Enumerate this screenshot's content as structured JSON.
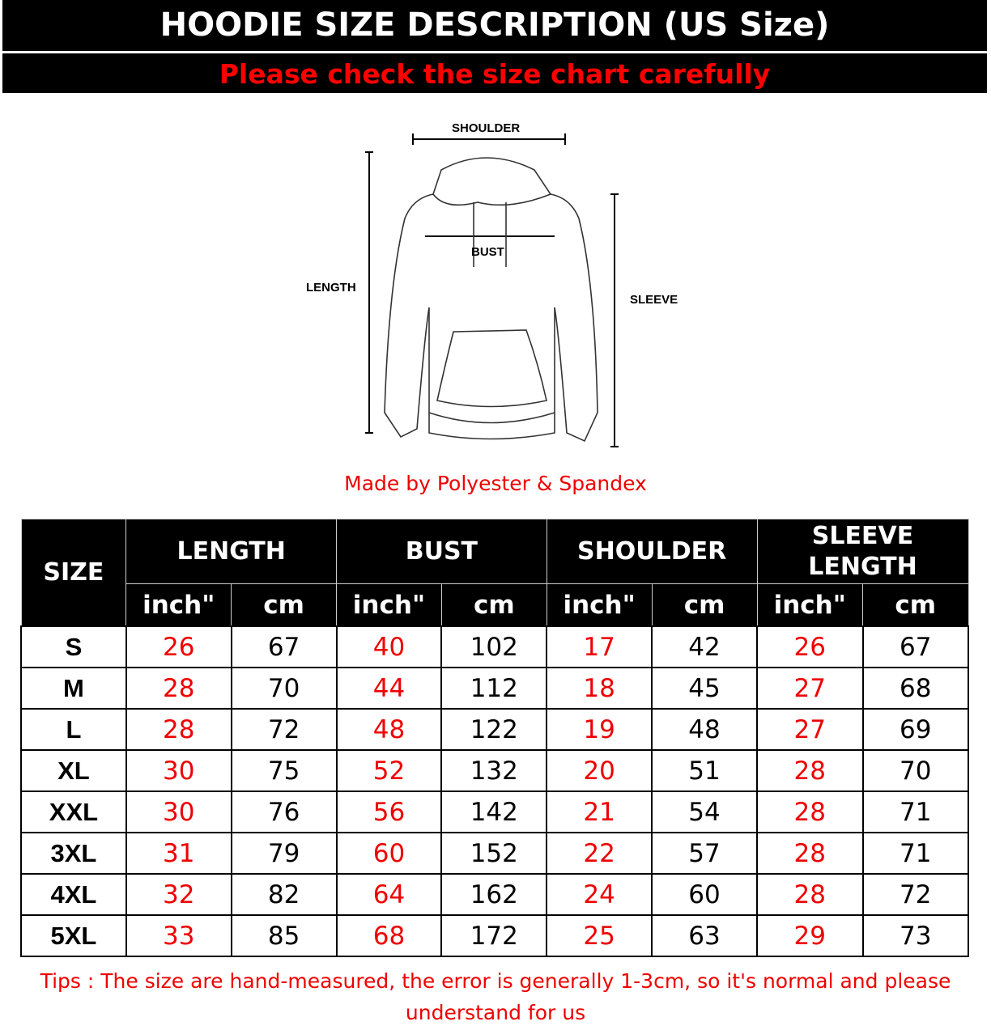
{
  "title": "HOODIE SIZE DESCRIPTION (US Size)",
  "subtitle": "Please check the size chart carefully",
  "diagram": {
    "shoulder": "SHOULDER",
    "bust": "BUST",
    "length": "LENGTH",
    "sleeve": "SLEEVE"
  },
  "material": "Made by Polyester & Spandex",
  "table": {
    "size_header": "SIZE",
    "groups": [
      "LENGTH",
      "BUST",
      "SHOULDER",
      "SLEEVE LENGTH"
    ],
    "units": [
      "inch\"",
      "cm"
    ],
    "rows": [
      [
        "S",
        "26",
        "67",
        "40",
        "102",
        "17",
        "42",
        "26",
        "67"
      ],
      [
        "M",
        "28",
        "70",
        "44",
        "112",
        "18",
        "45",
        "27",
        "68"
      ],
      [
        "L",
        "28",
        "72",
        "48",
        "122",
        "19",
        "48",
        "27",
        "69"
      ],
      [
        "XL",
        "30",
        "75",
        "52",
        "132",
        "20",
        "51",
        "28",
        "70"
      ],
      [
        "XXL",
        "30",
        "76",
        "56",
        "142",
        "21",
        "54",
        "28",
        "71"
      ],
      [
        "3XL",
        "31",
        "79",
        "60",
        "152",
        "22",
        "57",
        "28",
        "71"
      ],
      [
        "4XL",
        "32",
        "82",
        "64",
        "162",
        "24",
        "60",
        "28",
        "72"
      ],
      [
        "5XL",
        "33",
        "85",
        "68",
        "172",
        "25",
        "63",
        "29",
        "73"
      ]
    ]
  },
  "tips": "Tips : The size are hand-measured, the error is generally 1-3cm, so it's normal and please understand for us",
  "colors": {
    "header_bg": "#000000",
    "accent_red": "#ff0000"
  }
}
